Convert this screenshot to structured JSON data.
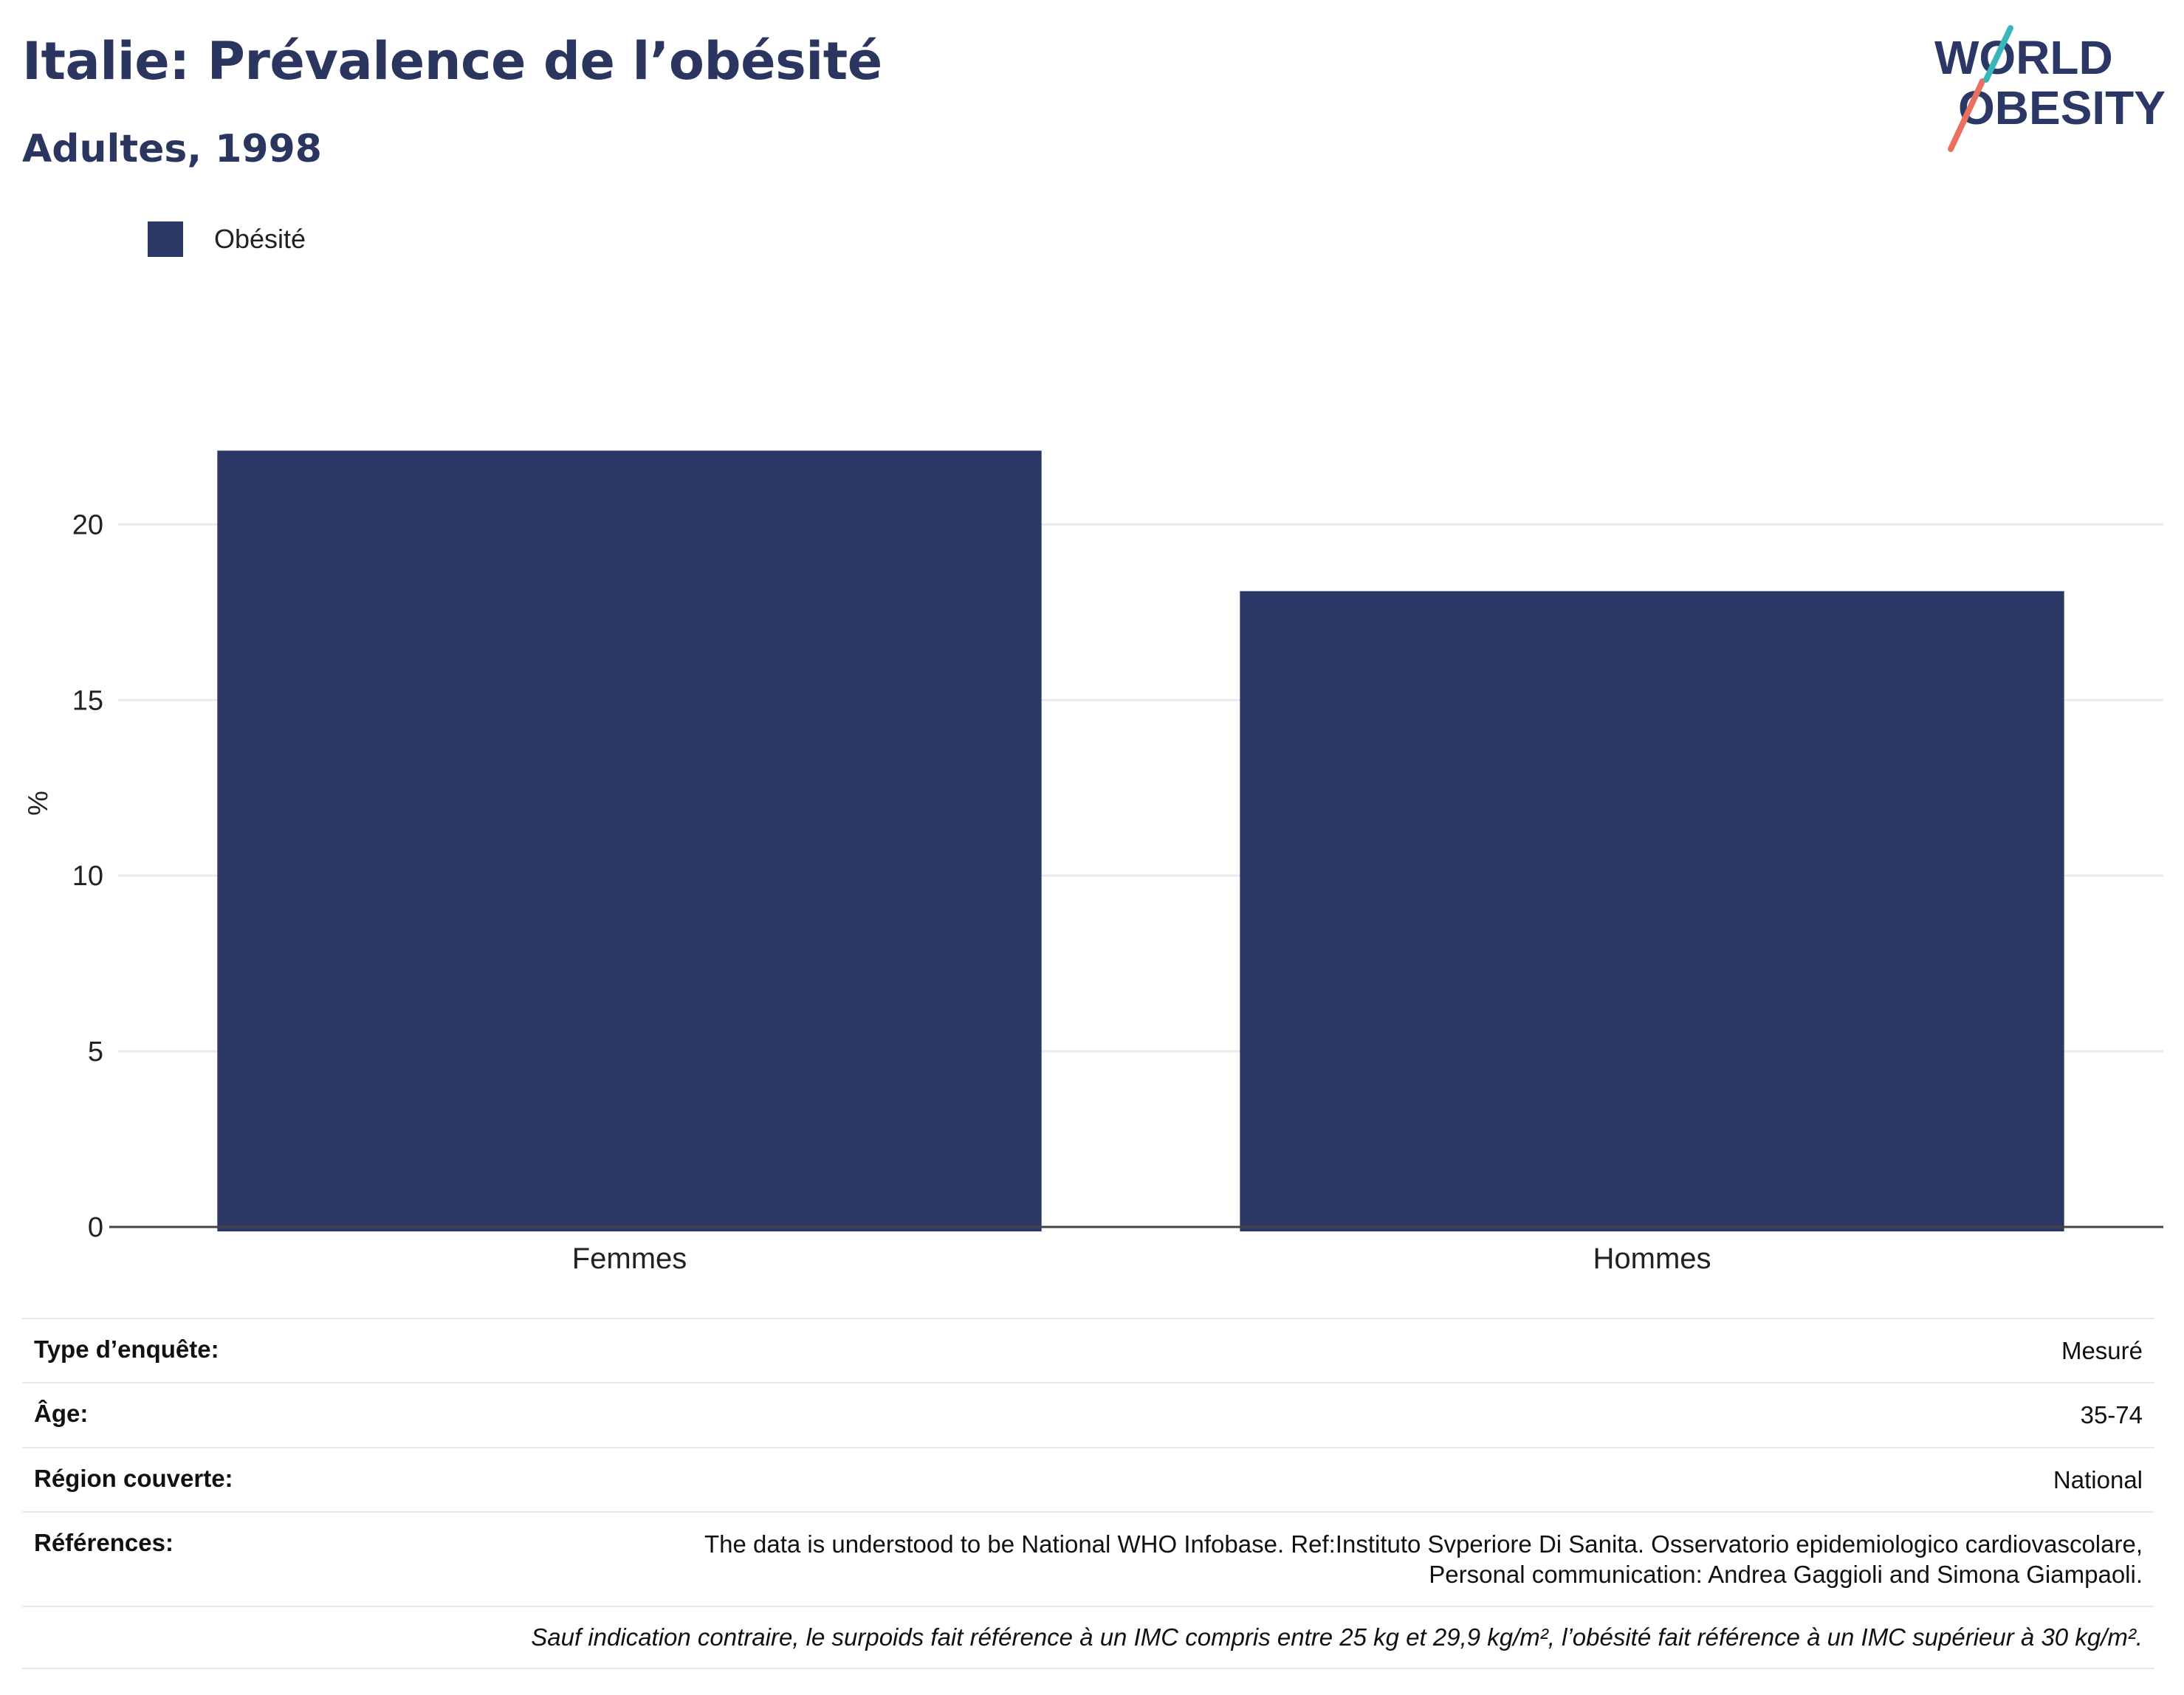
{
  "header": {
    "title": "Italie: Prévalence de l’obésité",
    "subtitle": "Adultes, 1998",
    "logo_line1": "WORLD",
    "logo_line2": "OBESITY"
  },
  "colors": {
    "bar": "#2b3764",
    "grid": "#e9eaee",
    "axis": "#444444",
    "logo_text": "#2b3764",
    "logo_teal": "#3ab5b8",
    "logo_coral": "#e8705f"
  },
  "chart_data": {
    "type": "bar",
    "categories": [
      "Femmes",
      "Hommes"
    ],
    "series": [
      {
        "name": "Obésité",
        "values": [
          22.1,
          18.1
        ]
      }
    ],
    "ylabel": "%",
    "xlabel": "",
    "ylim": [
      0,
      24
    ],
    "yticks": [
      0,
      5,
      10,
      15,
      20
    ],
    "grid": true,
    "legend": "top-left"
  },
  "info": {
    "survey_type_label": "Type d’enquête:",
    "survey_type_value": "Mesuré",
    "age_label": "Âge:",
    "age_value": "35-74",
    "region_label": "Région couverte:",
    "region_value": "National",
    "references_label": "Références:",
    "references_line1": "The data is understood to be National WHO Infobase. Ref:Instituto Svperiore Di Sanita. Osservatorio epidemiologico cardiovascolare,",
    "references_line2": "Personal communication: Andrea Gaggioli and Simona Giampaoli.",
    "note": "Sauf indication contraire, le surpoids fait référence à un IMC compris entre 25 kg et 29,9 kg/m², l’obésité fait référence à un IMC supérieur à 30 kg/m²."
  }
}
